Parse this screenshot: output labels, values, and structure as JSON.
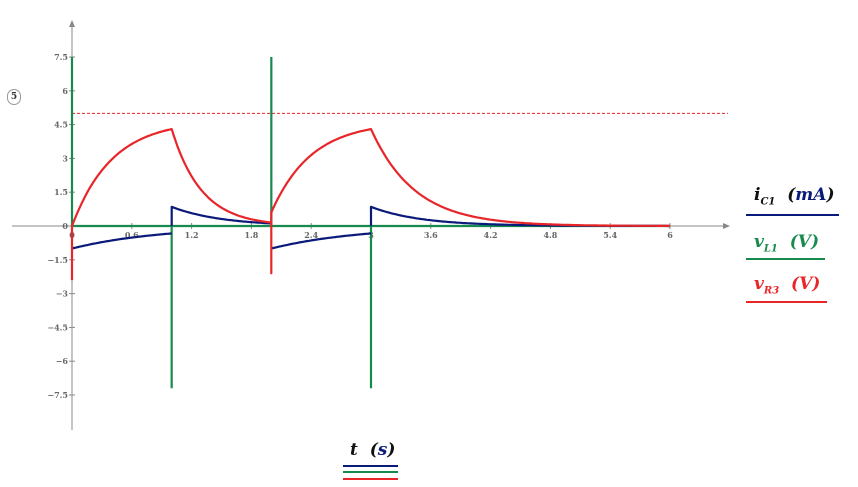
{
  "chart_data": {
    "type": "line",
    "xlabel": "t",
    "xunit": "s",
    "xlim": [
      0,
      6.5
    ],
    "ylim": [
      -9.0,
      9.0
    ],
    "x_ticks": [
      "0",
      "0.6",
      "1.2",
      "1.8",
      "2.4",
      "3",
      "3.6",
      "4.2",
      "4.8",
      "5.4",
      "6"
    ],
    "y_ticks": [
      "7.5",
      "6",
      "4.5",
      "3",
      "1.5",
      "0",
      "−1.5",
      "−3",
      "−4.5",
      "−6",
      "−7.5"
    ],
    "threshold": {
      "label": "5",
      "value": 5,
      "color": "#e8262a"
    },
    "series": [
      {
        "name": "i_C1",
        "sub": "C1",
        "unit": "mA",
        "color": "#0a1a7a",
        "model": "C1",
        "segments": [
          [
            0,
            1,
            -1.0
          ],
          [
            1,
            2,
            0.85
          ],
          [
            2,
            3,
            -1.0
          ],
          [
            3,
            6,
            0.85
          ]
        ],
        "tau": 0.5
      },
      {
        "name": "v_L1",
        "sub": "L1",
        "unit": "V",
        "color": "#178a4e",
        "model": "L1",
        "spikes": [
          [
            0,
            7.5
          ],
          [
            1,
            -7.2
          ],
          [
            2,
            7.5
          ],
          [
            3,
            -7.2
          ]
        ]
      },
      {
        "name": "v_R3",
        "sub": "R3",
        "unit": "V",
        "color": "#e8262a",
        "model": "R3",
        "tau": 0.4,
        "peak": 4.3,
        "low": 0.65
      }
    ]
  }
}
